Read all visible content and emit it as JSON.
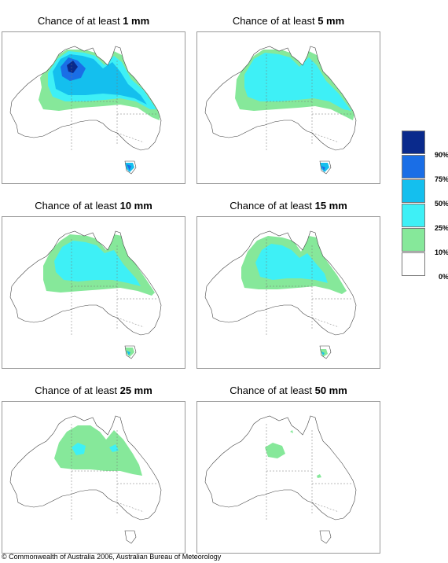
{
  "panels": [
    {
      "prefix": "Chance of at least ",
      "amount": "1 mm"
    },
    {
      "prefix": "Chance of at least ",
      "amount": "5 mm"
    },
    {
      "prefix": "Chance of at least ",
      "amount": "10 mm"
    },
    {
      "prefix": "Chance of at least ",
      "amount": "15 mm"
    },
    {
      "prefix": "Chance of at least ",
      "amount": "25 mm"
    },
    {
      "prefix": "Chance of at least ",
      "amount": "50 mm"
    }
  ],
  "legend": {
    "labels": [
      "90%",
      "75%",
      "50%",
      "25%",
      "10%",
      "0%"
    ],
    "colors": [
      "#0a2a8c",
      "#1a6ee6",
      "#14bfee",
      "#3ef0f6",
      "#86e89a",
      "#ffffff"
    ]
  },
  "copyright": "© Commonwealth of Australia 2006, Australian Bureau of Meteorology"
}
